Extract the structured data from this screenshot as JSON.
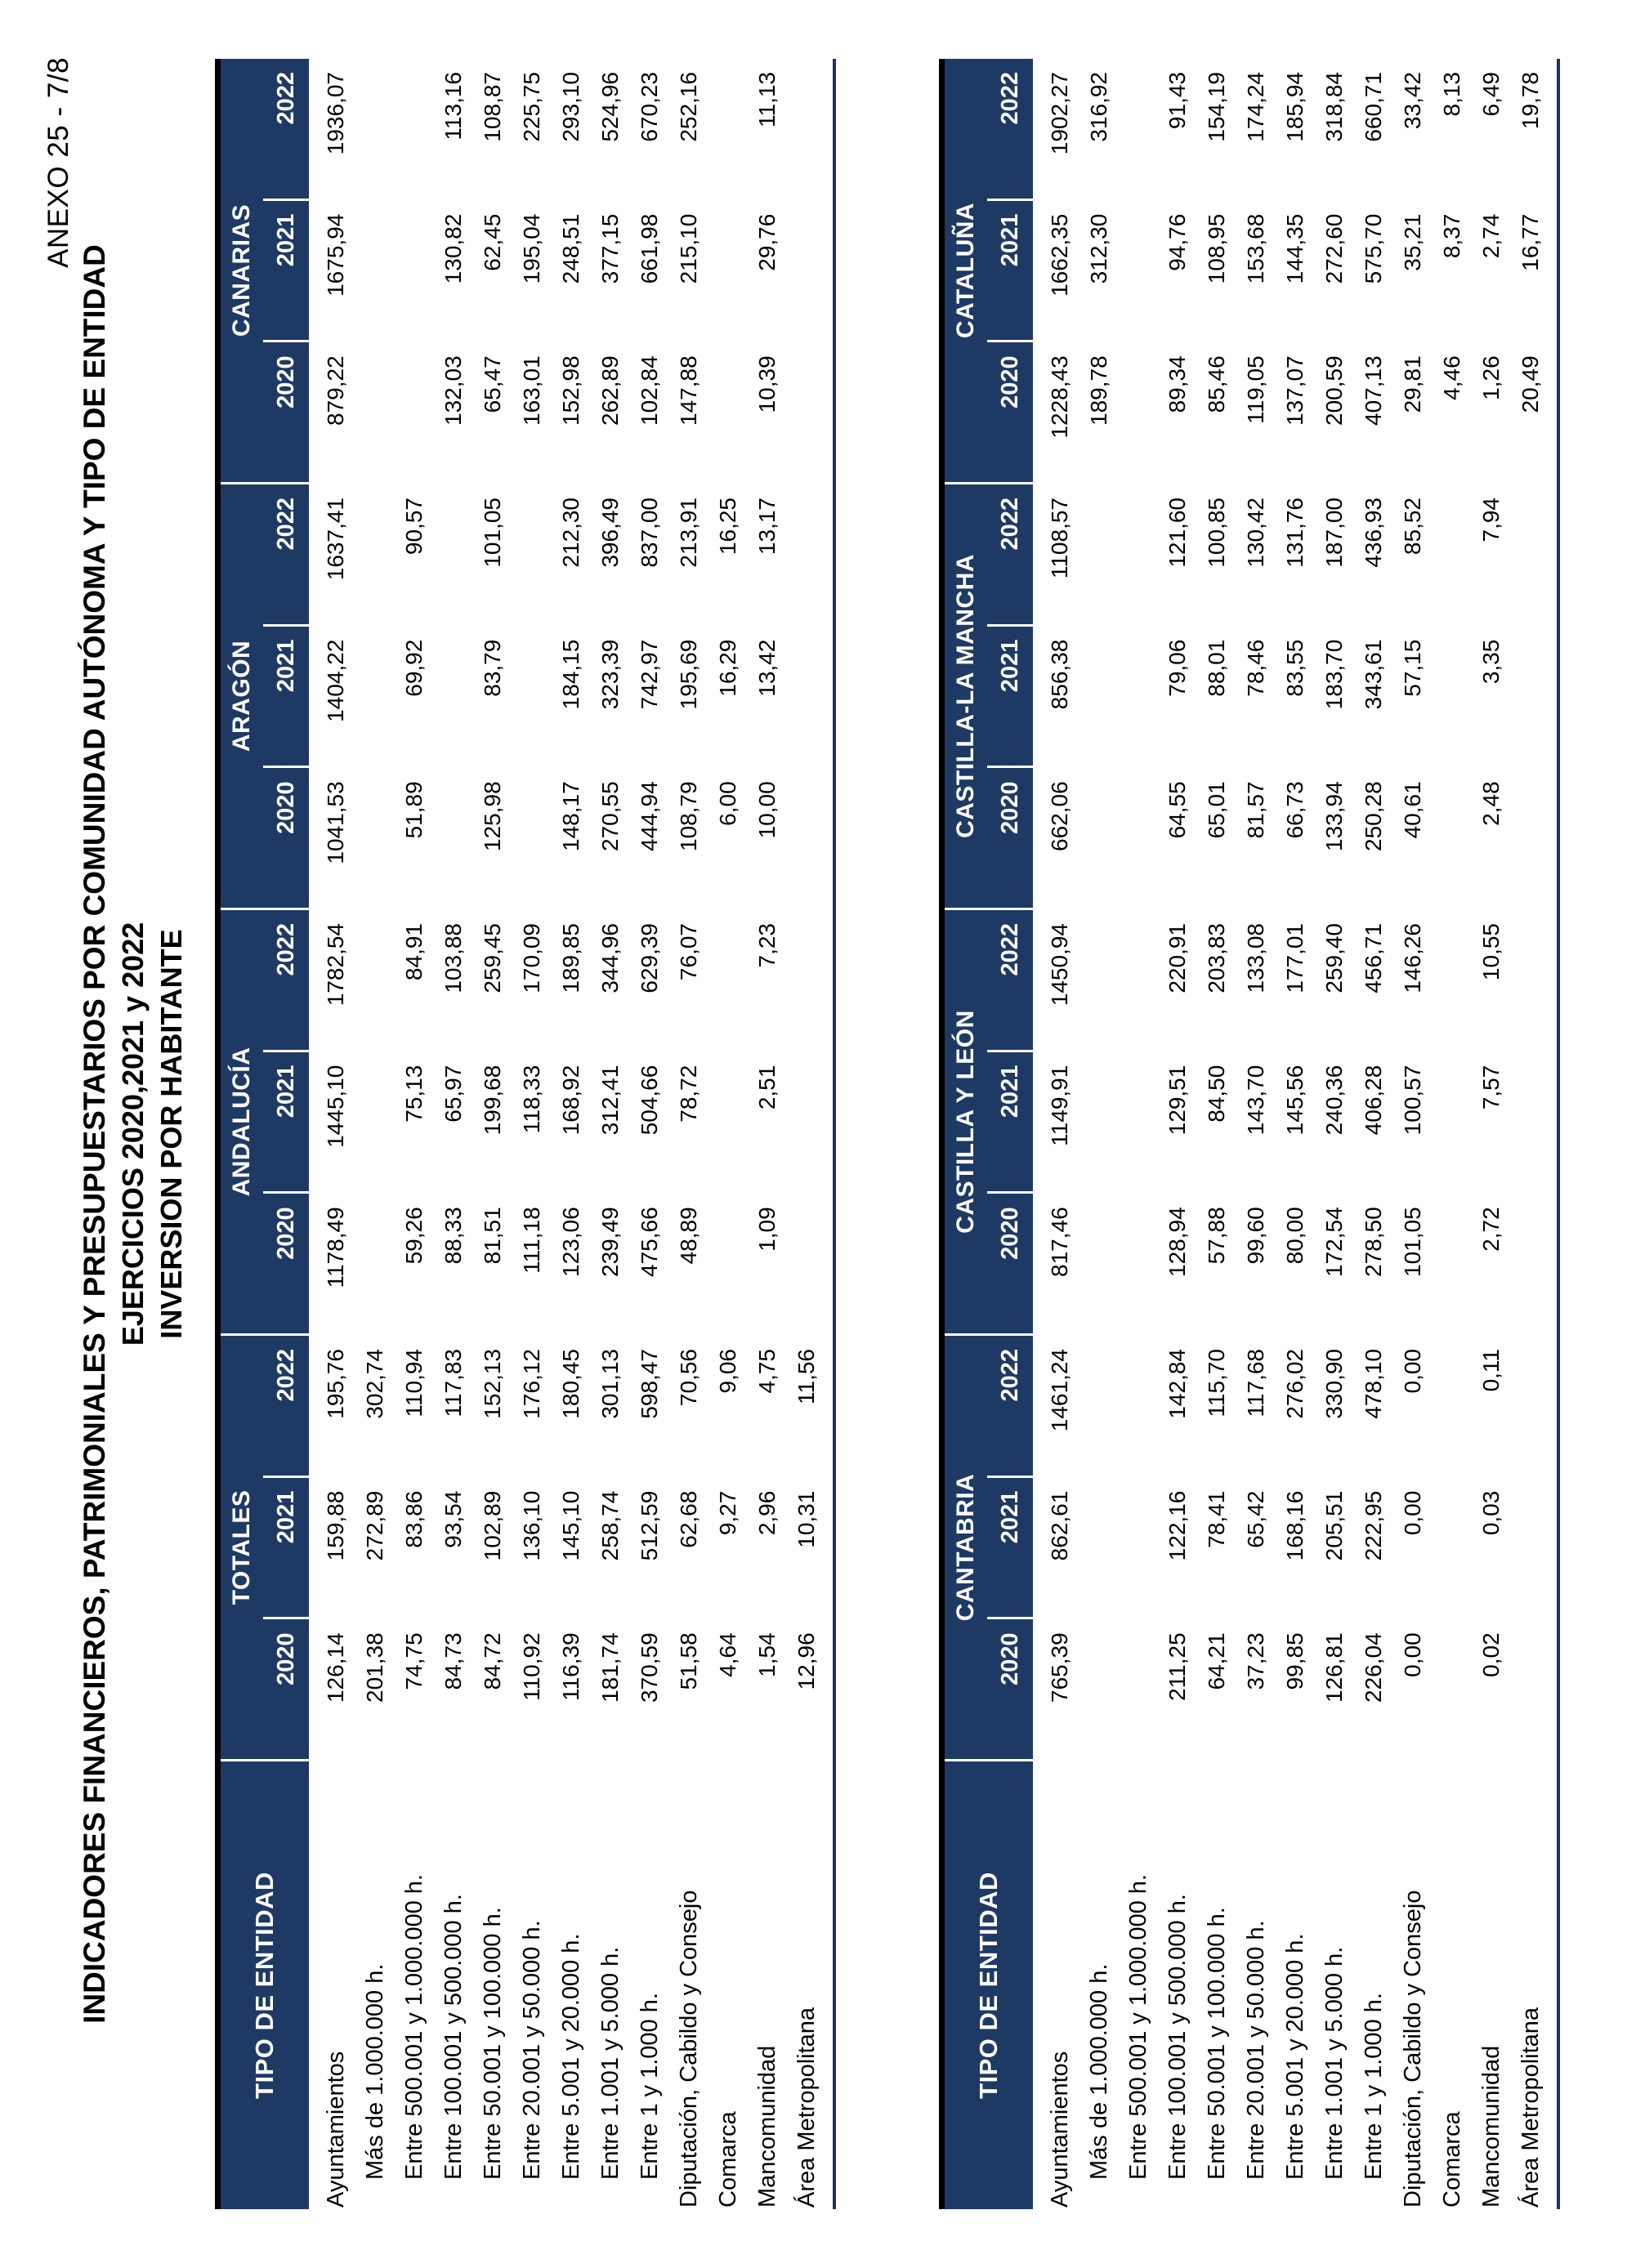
{
  "page": {
    "anexo": "ANEXO 25 - 7/8",
    "title_line1": "INDICADORES FINANCIEROS, PATRIMONIALES Y PRESUPUESTARIOS POR COMUNIDAD AUTÓNOMA Y TIPO DE ENTIDAD",
    "title_line2": "EJERCICIOS 2020,2021 y 2022",
    "title_line3": "INVERSION POR HABITANTE"
  },
  "colors": {
    "header_navy": "#1e3a64",
    "top_rule_black": "#000000"
  },
  "entity_header": "TIPO DE ENTIDAD",
  "years": [
    "2020",
    "2021",
    "2022"
  ],
  "row_labels": [
    {
      "label": "Ayuntamientos",
      "indent": false
    },
    {
      "label": "Más de 1.000.000 h.",
      "indent": true
    },
    {
      "label": "Entre 500.001 y 1.000.000 h.",
      "indent": true
    },
    {
      "label": "Entre 100.001 y 500.000 h.",
      "indent": true
    },
    {
      "label": "Entre 50.001 y 100.000 h.",
      "indent": true
    },
    {
      "label": "Entre 20.001 y 50.000 h.",
      "indent": true
    },
    {
      "label": "Entre 5.001 y 20.000 h.",
      "indent": true
    },
    {
      "label": "Entre 1.001 y 5.000 h.",
      "indent": true
    },
    {
      "label": "Entre 1 y 1.000 h.",
      "indent": true
    },
    {
      "label": "Diputación, Cabildo y Consejo",
      "indent": false
    },
    {
      "label": "Comarca",
      "indent": false
    },
    {
      "label": "Mancomunidad",
      "indent": false
    },
    {
      "label": "Área Metropolitana",
      "indent": false
    }
  ],
  "tables": [
    {
      "groups": [
        "TOTALES",
        "ANDALUCÍA",
        "ARAGÓN",
        "CANARIAS"
      ],
      "rows": [
        {
          "cells": [
            "126,14",
            "159,88",
            "195,76",
            "1178,49",
            "1445,10",
            "1782,54",
            "1041,53",
            "1404,22",
            "1637,41",
            "879,22",
            "1675,94",
            "1936,07"
          ]
        },
        {
          "cells": [
            "201,38",
            "272,89",
            "302,74",
            "",
            "",
            "",
            "",
            "",
            "",
            "",
            "",
            ""
          ]
        },
        {
          "cells": [
            "74,75",
            "83,86",
            "110,94",
            "59,26",
            "75,13",
            "84,91",
            "51,89",
            "69,92",
            "90,57",
            "",
            "",
            ""
          ]
        },
        {
          "cells": [
            "84,73",
            "93,54",
            "117,83",
            "88,33",
            "65,97",
            "103,88",
            "",
            "",
            "",
            "132,03",
            "130,82",
            "113,16"
          ]
        },
        {
          "cells": [
            "84,72",
            "102,89",
            "152,13",
            "81,51",
            "199,68",
            "259,45",
            "125,98",
            "83,79",
            "101,05",
            "65,47",
            "62,45",
            "108,87"
          ]
        },
        {
          "cells": [
            "110,92",
            "136,10",
            "176,12",
            "111,18",
            "118,33",
            "170,09",
            "",
            "",
            "",
            "163,01",
            "195,04",
            "225,75"
          ]
        },
        {
          "cells": [
            "116,39",
            "145,10",
            "180,45",
            "123,06",
            "168,92",
            "189,85",
            "148,17",
            "184,15",
            "212,30",
            "152,98",
            "248,51",
            "293,10"
          ]
        },
        {
          "cells": [
            "181,74",
            "258,74",
            "301,13",
            "239,49",
            "312,41",
            "344,96",
            "270,55",
            "323,39",
            "396,49",
            "262,89",
            "377,15",
            "524,96"
          ]
        },
        {
          "cells": [
            "370,59",
            "512,59",
            "598,47",
            "475,66",
            "504,66",
            "629,39",
            "444,94",
            "742,97",
            "837,00",
            "102,84",
            "661,98",
            "670,23"
          ]
        },
        {
          "cells": [
            "51,58",
            "62,68",
            "70,56",
            "48,89",
            "78,72",
            "76,07",
            "108,79",
            "195,69",
            "213,91",
            "147,88",
            "215,10",
            "252,16"
          ]
        },
        {
          "cells": [
            "4,64",
            "9,27",
            "9,06",
            "",
            "",
            "",
            "6,00",
            "16,29",
            "16,25",
            "",
            "",
            ""
          ]
        },
        {
          "cells": [
            "1,54",
            "2,96",
            "4,75",
            "1,09",
            "2,51",
            "7,23",
            "10,00",
            "13,42",
            "13,17",
            "10,39",
            "29,76",
            "11,13"
          ]
        },
        {
          "cells": [
            "12,96",
            "10,31",
            "11,56",
            "",
            "",
            "",
            "",
            "",
            "",
            "",
            "",
            ""
          ]
        }
      ]
    },
    {
      "groups": [
        "CANTABRIA",
        "CASTILLA Y LEÓN",
        "CASTILLA-LA MANCHA",
        "CATALUÑA"
      ],
      "rows": [
        {
          "cells": [
            "765,39",
            "862,61",
            "1461,24",
            "817,46",
            "1149,91",
            "1450,94",
            "662,06",
            "856,38",
            "1108,57",
            "1228,43",
            "1662,35",
            "1902,27"
          ]
        },
        {
          "cells": [
            "",
            "",
            "",
            "",
            "",
            "",
            "",
            "",
            "",
            "189,78",
            "312,30",
            "316,92"
          ]
        },
        {
          "cells": [
            "",
            "",
            "",
            "",
            "",
            "",
            "",
            "",
            "",
            "",
            "",
            ""
          ]
        },
        {
          "cells": [
            "211,25",
            "122,16",
            "142,84",
            "128,94",
            "129,51",
            "220,91",
            "64,55",
            "79,06",
            "121,60",
            "89,34",
            "94,76",
            "91,43"
          ]
        },
        {
          "cells": [
            "64,21",
            "78,41",
            "115,70",
            "57,88",
            "84,50",
            "203,83",
            "65,01",
            "88,01",
            "100,85",
            "85,46",
            "108,95",
            "154,19"
          ]
        },
        {
          "cells": [
            "37,23",
            "65,42",
            "117,68",
            "99,60",
            "143,70",
            "133,08",
            "81,57",
            "78,46",
            "130,42",
            "119,05",
            "153,68",
            "174,24"
          ]
        },
        {
          "cells": [
            "99,85",
            "168,16",
            "276,02",
            "80,00",
            "145,56",
            "177,01",
            "66,73",
            "83,55",
            "131,76",
            "137,07",
            "144,35",
            "185,94"
          ]
        },
        {
          "cells": [
            "126,81",
            "205,51",
            "330,90",
            "172,54",
            "240,36",
            "259,40",
            "133,94",
            "183,70",
            "187,00",
            "200,59",
            "272,60",
            "318,84"
          ]
        },
        {
          "cells": [
            "226,04",
            "222,95",
            "478,10",
            "278,50",
            "406,28",
            "456,71",
            "250,28",
            "343,61",
            "436,93",
            "407,13",
            "575,70",
            "660,71"
          ]
        },
        {
          "cells": [
            "0,00",
            "0,00",
            "0,00",
            "101,05",
            "100,57",
            "146,26",
            "40,61",
            "57,15",
            "85,52",
            "29,81",
            "35,21",
            "33,42"
          ]
        },
        {
          "cells": [
            "",
            "",
            "",
            "",
            "",
            "",
            "",
            "",
            "",
            "4,46",
            "8,37",
            "8,13"
          ]
        },
        {
          "cells": [
            "0,02",
            "0,03",
            "0,11",
            "2,72",
            "7,57",
            "10,55",
            "2,48",
            "3,35",
            "7,94",
            "1,26",
            "2,74",
            "6,49"
          ]
        },
        {
          "cells": [
            "",
            "",
            "",
            "",
            "",
            "",
            "",
            "",
            "",
            "20,49",
            "16,77",
            "19,78"
          ]
        }
      ]
    }
  ]
}
